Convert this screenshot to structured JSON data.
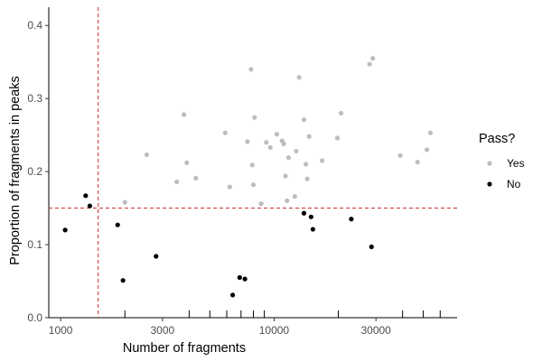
{
  "chart_data": {
    "type": "scatter",
    "xlabel": "Number of fragments",
    "ylabel": "Proportion of fragments in peaks",
    "x_scale": "log",
    "xlim": [
      880,
      72000
    ],
    "ylim": [
      0,
      0.425
    ],
    "x_ticks": [
      {
        "value": 1000,
        "label": "1000"
      },
      {
        "value": 3000,
        "label": "3000"
      },
      {
        "value": 10000,
        "label": "10000"
      },
      {
        "value": 30000,
        "label": "30000"
      }
    ],
    "y_ticks": [
      {
        "value": 0.0,
        "label": "0.0"
      },
      {
        "value": 0.1,
        "label": "0.1"
      },
      {
        "value": 0.2,
        "label": "0.2"
      },
      {
        "value": 0.3,
        "label": "0.3"
      },
      {
        "value": 0.4,
        "label": "0.4"
      }
    ],
    "x_minor_ticks": [
      2000,
      4000,
      5000,
      6000,
      7000,
      8000,
      9000,
      20000,
      40000,
      50000,
      60000
    ],
    "grid": false,
    "thresholds": {
      "x": 1500,
      "y": 0.15,
      "color": "#cc2222"
    },
    "legend": {
      "title": "Pass?",
      "position": "right",
      "entries": [
        {
          "label": "Yes",
          "color": "#bdbdbd"
        },
        {
          "label": "No",
          "color": "#000000"
        }
      ]
    },
    "series": [
      {
        "name": "Yes",
        "color": "#bdbdbd",
        "points": [
          [
            2000,
            0.158
          ],
          [
            2530,
            0.223
          ],
          [
            3500,
            0.186
          ],
          [
            3780,
            0.278
          ],
          [
            3900,
            0.212
          ],
          [
            4300,
            0.191
          ],
          [
            5900,
            0.253
          ],
          [
            6200,
            0.179
          ],
          [
            7500,
            0.241
          ],
          [
            7800,
            0.34
          ],
          [
            7900,
            0.209
          ],
          [
            8000,
            0.182
          ],
          [
            8100,
            0.274
          ],
          [
            8700,
            0.156
          ],
          [
            9200,
            0.24
          ],
          [
            9600,
            0.233
          ],
          [
            10300,
            0.251
          ],
          [
            10900,
            0.242
          ],
          [
            11100,
            0.238
          ],
          [
            11300,
            0.194
          ],
          [
            11500,
            0.16
          ],
          [
            11700,
            0.219
          ],
          [
            12500,
            0.166
          ],
          [
            12700,
            0.228
          ],
          [
            13100,
            0.329
          ],
          [
            13800,
            0.271
          ],
          [
            14100,
            0.21
          ],
          [
            14300,
            0.19
          ],
          [
            14600,
            0.248
          ],
          [
            16800,
            0.215
          ],
          [
            19800,
            0.246
          ],
          [
            20600,
            0.28
          ],
          [
            28000,
            0.347
          ],
          [
            29000,
            0.355
          ],
          [
            39000,
            0.222
          ],
          [
            47000,
            0.213
          ],
          [
            52000,
            0.23
          ],
          [
            54000,
            0.253
          ]
        ]
      },
      {
        "name": "No",
        "color": "#000000",
        "points": [
          [
            1050,
            0.12
          ],
          [
            1310,
            0.167
          ],
          [
            1370,
            0.153
          ],
          [
            1850,
            0.127
          ],
          [
            1960,
            0.051
          ],
          [
            2800,
            0.084
          ],
          [
            6400,
            0.031
          ],
          [
            6900,
            0.055
          ],
          [
            7300,
            0.053
          ],
          [
            13800,
            0.143
          ],
          [
            14900,
            0.138
          ],
          [
            15200,
            0.121
          ],
          [
            23000,
            0.135
          ],
          [
            28600,
            0.097
          ]
        ]
      }
    ]
  }
}
